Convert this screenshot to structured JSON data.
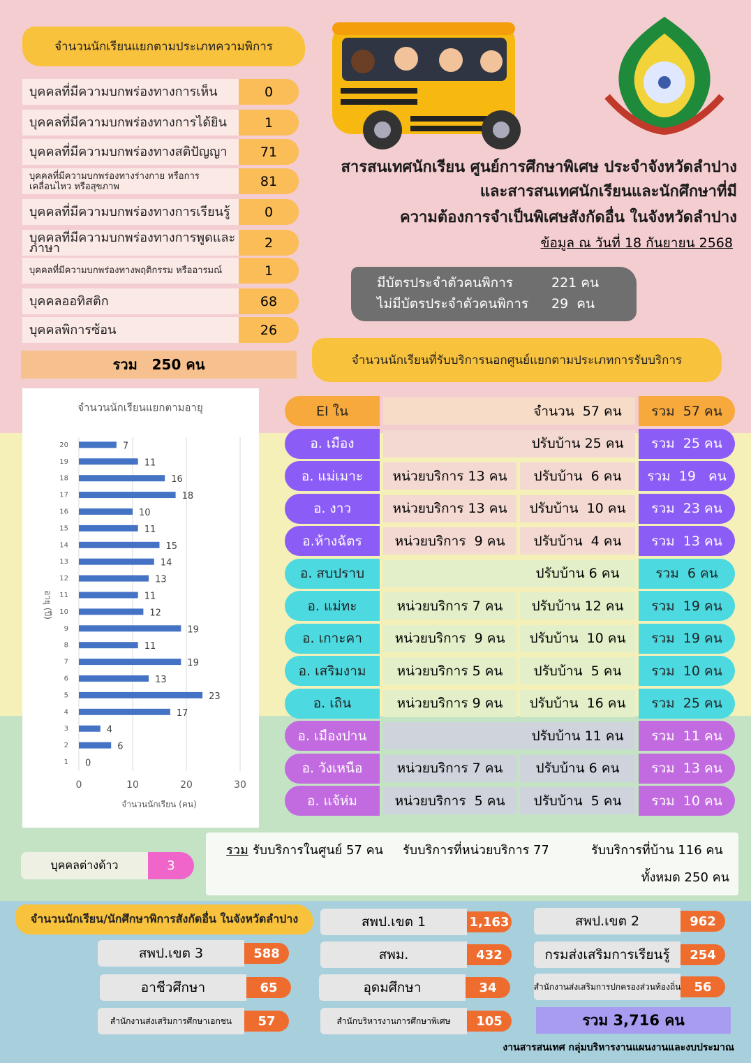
{
  "disability": {
    "title": "จำนวนนักเรียนแยกตามประเภทความพิการ",
    "items": [
      {
        "label": "บุคคลที่มีความบกพร่องทางการเห็น",
        "value": 0
      },
      {
        "label": "บุคคลที่มีความบกพร่องทางการได้ยิน",
        "value": 1
      },
      {
        "label": "บุคคลที่มีความบกพร่องทางสติปัญญา",
        "value": 71
      },
      {
        "label": "บุคคลที่มีความบกพร่องทางร่างกาย หรือการเคลื่อนไหว หรือสุขภาพ",
        "value": 81
      },
      {
        "label": "บุคคลที่มีความบกพร่องทางการเรียนรู้",
        "value": 0
      },
      {
        "label": "บุคคลที่มีความบกพร่องทางการพูดและภาษา",
        "value": 2
      },
      {
        "label": "บุคคลที่มีความบกพร่องทางพฤติกรรม หรืออารมณ์",
        "value": 1
      },
      {
        "label": "บุคคลออทิสติก",
        "value": 68
      },
      {
        "label": "บุคคลพิการซ้อน",
        "value": 26
      }
    ],
    "total": "รวม   250 คน"
  },
  "header": {
    "title_lines": [
      "สารสนเทศนักเรียน ศูนย์การศึกษาพิเศษ ประจำจังหวัดลำปาง",
      "และสารสนเทศนักเรียนและนักศึกษาที่มี",
      "ความต้องการจำเป็นพิเศษสังกัดอื่น ในจังหวัดลำปาง"
    ],
    "date": "ข้อมูล ณ วันที่ 18 กันยายน 2568"
  },
  "cards": [
    {
      "label": "มีบัตรประจำตัวคนพิการ",
      "value": "221 คน"
    },
    {
      "label": "ไม่มีบัตรประจำตัวคนพิการ",
      "value": "29  คน"
    }
  ],
  "services": {
    "title": "จำนวนนักเรียนที่รับบริการนอกศูนย์แยกตามประเภทการรับบริการ",
    "rows": [
      {
        "district": "EI ใน",
        "home": "จำนวน  57 คน",
        "total": "รวม  57 คน",
        "color": "#f8a93b"
      },
      {
        "district": "อ. เมือง",
        "home": "ปรับบ้าน 25 คน",
        "total": "รวม  25 คน",
        "color": "#8b5cf6"
      },
      {
        "district": "อ. แม่เมาะ",
        "unit": "หน่วยบริการ 13 คน",
        "home": "ปรับบ้าน  6 คน",
        "total": "รวม  19   คน",
        "color": "#8b5cf6"
      },
      {
        "district": "อ. งาว",
        "unit": "หน่วยบริการ 13 คน",
        "home": "ปรับบ้าน  10 คน",
        "total": "รวม  23 คน",
        "color": "#8b5cf6"
      },
      {
        "district": "อ.ห้างฉัตร",
        "unit": "หน่วยบริการ  9 คน",
        "home": "ปรับบ้าน  4 คน",
        "total": "รวม  13 คน",
        "color": "#8b5cf6"
      },
      {
        "district": "อ. สบปราบ",
        "home": "ปรับบ้าน 6 คน",
        "total": "รวม  6 คน",
        "color": "#4dd9e0"
      },
      {
        "district": "อ. แม่ทะ",
        "unit": "หน่วยบริการ 7 คน",
        "home": "ปรับบ้าน 12 คน",
        "total": "รวม  19 คน",
        "color": "#4dd9e0"
      },
      {
        "district": "อ. เกาะคา",
        "unit": "หน่วยบริการ  9 คน",
        "home": "ปรับบ้าน  10 คน",
        "total": "รวม  19 คน",
        "color": "#4dd9e0"
      },
      {
        "district": "อ. เสริมงาม",
        "unit": "หน่วยบริการ 5 คน",
        "home": "ปรับบ้าน  5 คน",
        "total": "รวม  10 คน",
        "color": "#4dd9e0"
      },
      {
        "district": "อ. เถิน",
        "unit": "หน่วยบริการ 9 คน",
        "home": "ปรับบ้าน  16 คน",
        "total": "รวม  25 คน",
        "color": "#4dd9e0"
      },
      {
        "district": "อ. เมืองปาน",
        "home": "ปรับบ้าน 11 คน",
        "total": "รวม  11 คน",
        "color": "#c26be0"
      },
      {
        "district": "อ. วังเหนือ",
        "unit": "หน่วยบริการ 7 คน",
        "home": "ปรับบ้าน 6 คน",
        "total": "รวม  13 คน",
        "color": "#c26be0"
      },
      {
        "district": "อ. แจ้ห่ม",
        "unit": "หน่วยบริการ  5 คน",
        "home": "ปรับบ้าน  5 คน",
        "total": "รวม  10 คน",
        "color": "#c26be0"
      }
    ]
  },
  "summary": {
    "label": "รวม",
    "items": [
      "รับบริการในศูนย์ 57 คน",
      "รับบริการที่หน่วยบริการ 77 คน",
      "รับบริการที่บ้าน 116 คน"
    ],
    "total": "ทั้งหมด 250 คน"
  },
  "foreign": {
    "label": "บุคคลต่างด้าว",
    "value": 3
  },
  "agencies": {
    "title": "จำนวนนักเรียน/นักศึกษาพิการสังกัดอื่น ในจังหวัดลำปาง",
    "items": [
      {
        "label": "สพป.เขต 1",
        "value": "1,163"
      },
      {
        "label": "สพป.เขต 2",
        "value": "962"
      },
      {
        "label": "สพป.เขต 3",
        "value": "588"
      },
      {
        "label": "สพม.",
        "value": "432"
      },
      {
        "label": "กรมส่งเสริมการเรียนรู้",
        "value": "254"
      },
      {
        "label": "อาชีวศึกษา",
        "value": "65"
      },
      {
        "label": "อุดมศึกษา",
        "value": "34"
      },
      {
        "label": "สำนักงานส่งเสริมการปกครองส่วนท้องถิ่น",
        "value": "56"
      },
      {
        "label": "สำนักงานส่งเสริมการศึกษาเอกชน",
        "value": "57"
      },
      {
        "label": "สำนักบริหารงานการศึกษาพิเศษ",
        "value": "105"
      }
    ],
    "total": "รวม 3,716 คน"
  },
  "footer": "งานสารสนเทศ กลุ่มบริหารงานแผนงานและงบประมาณ",
  "chart_data": {
    "type": "bar",
    "orientation": "horizontal",
    "title": "จำนวนนักเรียนแยกตามอายุ",
    "x_label": "จำนวนนักเรียน (คน)",
    "y_label": "อายุ (ปี)",
    "categories": [
      "1",
      "2",
      "3",
      "4",
      "5",
      "6",
      "7",
      "8",
      "9",
      "10",
      "11",
      "12",
      "13",
      "14",
      "15",
      "16",
      "17",
      "18",
      "19",
      "20"
    ],
    "values": [
      0,
      6,
      4,
      17,
      23,
      13,
      19,
      11,
      19,
      12,
      11,
      13,
      14,
      15,
      11,
      10,
      18,
      16,
      11,
      7
    ],
    "color": "#4472c4",
    "xlim": [
      0,
      30
    ],
    "xticks": [
      0,
      10,
      20,
      30
    ],
    "grid": true
  }
}
